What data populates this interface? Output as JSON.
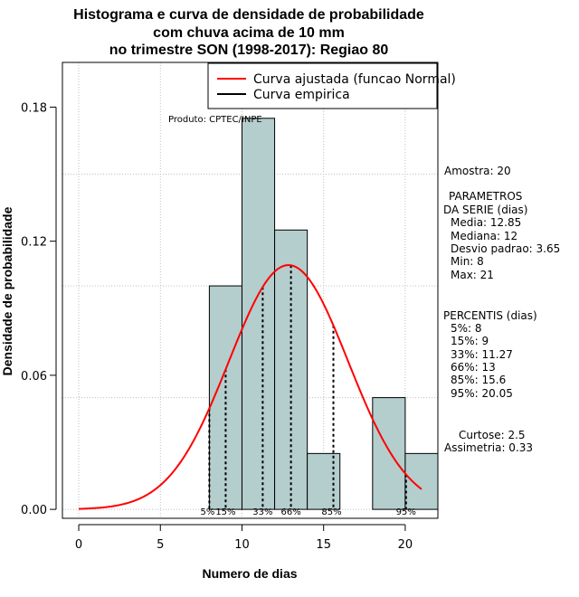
{
  "chart_data": {
    "type": "histogram",
    "title": [
      "Histograma e curva de densidade de probabilidade",
      "com chuva acima de 10 mm",
      "no trimestre SON (1998-2017): Regiao 80"
    ],
    "xlabel": "Numero de dias",
    "ylabel": "Densidade de probabilidade",
    "xlim": [
      -1,
      22
    ],
    "ylim": [
      -0.004,
      0.2
    ],
    "xticks": [
      0,
      5,
      10,
      15,
      20
    ],
    "yticks": [
      0.0,
      0.06,
      0.12,
      0.18
    ],
    "ytick_labels": [
      "0.00",
      "0.06",
      "0.12",
      "0.18"
    ],
    "bins": [
      {
        "x0": 8,
        "x1": 10,
        "density": 0.1
      },
      {
        "x0": 10,
        "x1": 12,
        "density": 0.175
      },
      {
        "x0": 12,
        "x1": 14,
        "density": 0.125
      },
      {
        "x0": 14,
        "x1": 16,
        "density": 0.025
      },
      {
        "x0": 16,
        "x1": 18,
        "density": 0.0
      },
      {
        "x0": 18,
        "x1": 20,
        "density": 0.05
      },
      {
        "x0": 20,
        "x1": 22,
        "density": 0.025
      }
    ],
    "normal_fit": {
      "mean": 12.85,
      "sd": 3.65,
      "x_from": 0,
      "x_to": 21
    },
    "percentiles": [
      {
        "label": "5%",
        "value": 8
      },
      {
        "label": "15%",
        "value": 9
      },
      {
        "label": "33%",
        "value": 11.27
      },
      {
        "label": "66%",
        "value": 13
      },
      {
        "label": "85%",
        "value": 15.6
      },
      {
        "label": "95%",
        "value": 20.05
      }
    ],
    "legend": [
      {
        "label": "Curva ajustada (funcao Normal)",
        "color": "#ff0000"
      },
      {
        "label": "Curva empirica",
        "color": "#000000"
      }
    ],
    "legend_position": "top-right",
    "grid": true,
    "bar_color": "#b4cdcd",
    "curve_color": "#ff0000"
  },
  "produto": "Produto: CPTEC/INPE",
  "stats": {
    "amostra": "Amostra: 20",
    "param_title_1": "PARAMETROS",
    "param_title_2": "DA SERIE (dias)",
    "params": [
      "Media: 12.85",
      "Mediana: 12",
      "Desvio padrao: 3.65",
      "Min: 8",
      "Max: 21"
    ],
    "percentis_title": "PERCENTIS (dias)",
    "percentis": [
      "5%: 8",
      "15%: 9",
      "33%: 11.27",
      "66%: 13",
      "85%: 15.6",
      "95%: 20.05"
    ],
    "curtose": "Curtose: 2.5",
    "assimetria": "Assimetria: 0.33"
  }
}
